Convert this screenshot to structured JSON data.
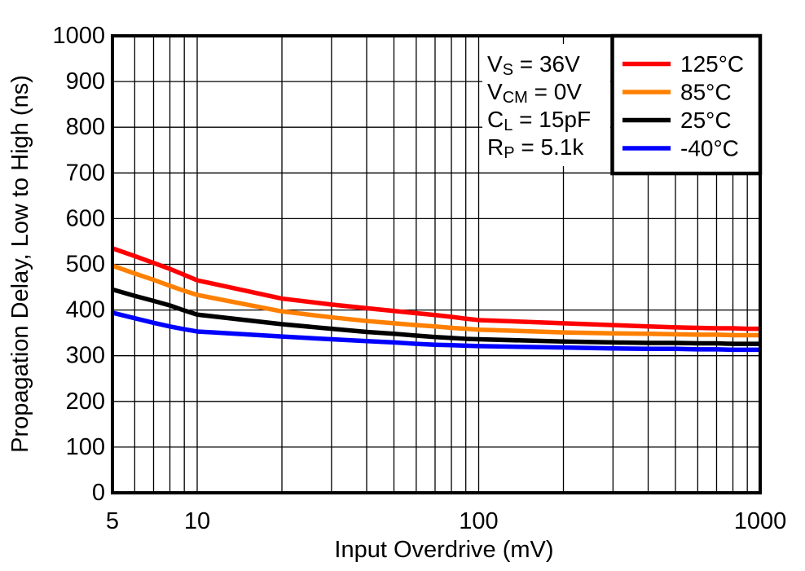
{
  "chart_data": {
    "type": "line",
    "title": "",
    "xlabel": "Input Overdrive (mV)",
    "ylabel": "Propagation Delay, Low to High (ns)",
    "x_scale": "log",
    "xlim": [
      5,
      1000
    ],
    "ylim": [
      0,
      1000
    ],
    "x_major_ticks": [
      5,
      10,
      100,
      1000
    ],
    "x_gridlines": [
      6,
      7,
      8,
      9,
      10,
      20,
      30,
      40,
      50,
      60,
      70,
      80,
      90,
      100,
      200,
      300,
      400,
      500,
      600,
      700,
      800,
      900
    ],
    "y_ticks": [
      0,
      100,
      200,
      300,
      400,
      500,
      600,
      700,
      800,
      900,
      1000
    ],
    "grid": true,
    "legend_position": "top-right",
    "x": [
      5,
      6,
      7,
      8,
      9,
      10,
      20,
      30,
      40,
      50,
      60,
      70,
      80,
      90,
      100,
      200,
      300,
      400,
      500,
      600,
      700,
      800,
      900,
      1000
    ],
    "series": [
      {
        "name": "125°C",
        "color": "#ff0000",
        "values": [
          535,
          518,
          503,
          490,
          477,
          465,
          425,
          412,
          404,
          398,
          393,
          389,
          385,
          381,
          378,
          371,
          367,
          364,
          362,
          361,
          360,
          360,
          359,
          359
        ]
      },
      {
        "name": "85°C",
        "color": "#ff8000",
        "values": [
          497,
          480,
          466,
          453,
          442,
          433,
          397,
          384,
          376,
          371,
          367,
          364,
          361,
          359,
          357,
          351,
          349,
          348,
          347,
          346,
          346,
          345,
          345,
          345
        ]
      },
      {
        "name": "25°C",
        "color": "#000000",
        "values": [
          445,
          431,
          420,
          410,
          399,
          390,
          369,
          359,
          352,
          348,
          344,
          341,
          339,
          337,
          336,
          331,
          329,
          328,
          328,
          327,
          327,
          326,
          326,
          326
        ]
      },
      {
        "name": "-40°C",
        "color": "#0000ff",
        "values": [
          394,
          382,
          372,
          364,
          358,
          353,
          342,
          336,
          332,
          329,
          326,
          324,
          323,
          322,
          321,
          318,
          316,
          315,
          315,
          314,
          314,
          313,
          313,
          313
        ]
      }
    ],
    "annotations": [
      {
        "base": "V",
        "sub": "S",
        "rest": " = 36V"
      },
      {
        "base": "V",
        "sub": "CM",
        "rest": " = 0V"
      },
      {
        "base": "C",
        "sub": "L",
        "rest": " = 15pF"
      },
      {
        "base": "R",
        "sub": "P",
        "rest": " = 5.1k"
      }
    ],
    "colors": {
      "axes": "#000000",
      "grid": "#000000",
      "background": "#ffffff"
    }
  }
}
